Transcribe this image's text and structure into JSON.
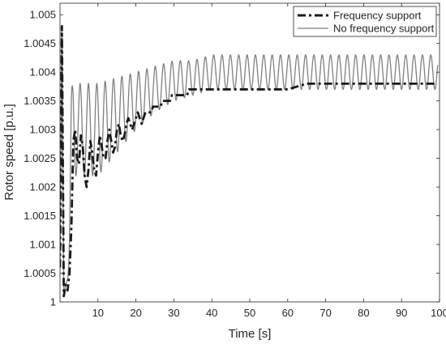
{
  "chart_data": {
    "type": "line",
    "xlabel": "Time [s]",
    "ylabel": "Rotor speed [p.u.]",
    "xlim": [
      0,
      100
    ],
    "ylim": [
      1.0,
      1.0052
    ],
    "x_ticks": [
      10,
      20,
      30,
      40,
      50,
      60,
      70,
      80,
      90,
      100
    ],
    "x_tick_labels": [
      "10",
      "20",
      "30",
      "40",
      "50",
      "60",
      "70",
      "80",
      "90",
      "100"
    ],
    "y_ticks": [
      1.0,
      1.0005,
      1.001,
      1.0015,
      1.002,
      1.0025,
      1.003,
      1.0035,
      1.004,
      1.0045,
      1.005
    ],
    "y_tick_labels": [
      "1",
      "1.0005",
      "1.001",
      "1.0015",
      "1.002",
      "1.0025",
      "1.003",
      "1.0035",
      "1.004",
      "1.0045",
      "1.005"
    ],
    "grid": false,
    "legend_position": "top-right",
    "series": [
      {
        "name": "Frequency support",
        "color": "#1a1a1a",
        "style": "dash-dot",
        "x": [
          0,
          0.5,
          1.0,
          1.5,
          2.0,
          2.5,
          3.0,
          3.5,
          4.0,
          4.5,
          5.0,
          5.5,
          6.0,
          6.5,
          7.0,
          7.5,
          8.0,
          8.5,
          9.0,
          9.5,
          10.0,
          10.5,
          11.0,
          11.5,
          12.0,
          12.5,
          13.0,
          13.5,
          14.0,
          14.5,
          15.0,
          15.5,
          16.0,
          16.5,
          17.0,
          17.5,
          18.0,
          18.5,
          19.0,
          19.5,
          20.0,
          20.5,
          21.0,
          21.5,
          22.0,
          22.5,
          23.0,
          23.5,
          24.0,
          24.5,
          25.0,
          25.5,
          26.0,
          26.5,
          27.0,
          27.5,
          28.0,
          28.5,
          29.0,
          29.5,
          30.0,
          30.5,
          31.0,
          31.5,
          32.0,
          32.5,
          33.0,
          33.5,
          34.0,
          34.5,
          35.0,
          35.5,
          36.0,
          36.5,
          37.0,
          37.5,
          38.0,
          38.5,
          39.0,
          39.5,
          40.0,
          41.0,
          42.0,
          43.0,
          44.0,
          45.0,
          46.0,
          48.0,
          50.0,
          52.0,
          55.0,
          60.0,
          65.0,
          70.0,
          75.0,
          80.0,
          85.0,
          90.0,
          95.0,
          99.5
        ],
        "y": [
          1.0006,
          1.0048,
          1.0001,
          1.0003,
          1.0002,
          1.0005,
          1.0013,
          1.0028,
          1.003,
          1.0025,
          1.0024,
          1.0029,
          1.0027,
          1.0022,
          1.002,
          1.0023,
          1.0028,
          1.0026,
          1.0023,
          1.0022,
          1.0026,
          1.0029,
          1.0027,
          1.0025,
          1.0025,
          1.0028,
          1.003,
          1.0028,
          1.0026,
          1.0027,
          1.003,
          1.0031,
          1.0029,
          1.0028,
          1.0029,
          1.0031,
          1.0032,
          1.0031,
          1.003,
          1.0031,
          1.0032,
          1.0033,
          1.0032,
          1.0031,
          1.0032,
          1.0033,
          1.0033,
          1.0033,
          1.0033,
          1.0034,
          1.0034,
          1.0034,
          1.0034,
          1.0034,
          1.0035,
          1.0035,
          1.0035,
          1.0035,
          1.0035,
          1.0036,
          1.0036,
          1.0036,
          1.0036,
          1.0036,
          1.0036,
          1.0036,
          1.0036,
          1.0036,
          1.0037,
          1.0037,
          1.0037,
          1.0037,
          1.0037,
          1.0037,
          1.0037,
          1.0037,
          1.0037,
          1.0037,
          1.0037,
          1.0037,
          1.0037,
          1.0037,
          1.0037,
          1.0037,
          1.0037,
          1.0037,
          1.0037,
          1.0037,
          1.0037,
          1.0037,
          1.0037,
          1.0037,
          1.0038,
          1.0038,
          1.0038,
          1.0038,
          1.0038,
          1.0038,
          1.0038,
          1.0038
        ]
      },
      {
        "name": "No frequency support",
        "color": "#808080",
        "style": "solid",
        "oscillation": {
          "start_time": 2.0,
          "base_level_final": 1.0037,
          "peak_level_final": 1.0043,
          "period_s": 2.2
        },
        "x": [
          0,
          0.5,
          1.0,
          1.5,
          2.0,
          2.5,
          3.0,
          3.5,
          4.0,
          5.0,
          7.5,
          10.0,
          15.0,
          20.0,
          25.0,
          30.0,
          35.0,
          40.0,
          45.0,
          50.0,
          60.0,
          70.0,
          80.0,
          90.0,
          99.5
        ],
        "y_peaks": [
          1.0006,
          1.0048,
          1.0001,
          1.0003,
          1.0004,
          1.0018,
          1.0036,
          1.0041,
          1.0039,
          1.0038,
          1.0038,
          1.0038,
          1.0039,
          1.004,
          1.0041,
          1.0042,
          1.0042,
          1.0043,
          1.0043,
          1.0043,
          1.0043,
          1.0043,
          1.0043,
          1.0043,
          1.0043
        ],
        "y_troughs": [
          1.0006,
          1.0048,
          1.0001,
          1.0003,
          1.0004,
          1.0006,
          1.0016,
          1.0022,
          1.0022,
          1.0022,
          1.0022,
          1.0022,
          1.0026,
          1.003,
          1.0033,
          1.0035,
          1.0036,
          1.0037,
          1.0037,
          1.0037,
          1.0037,
          1.0037,
          1.0037,
          1.0037,
          1.0037
        ]
      }
    ]
  }
}
